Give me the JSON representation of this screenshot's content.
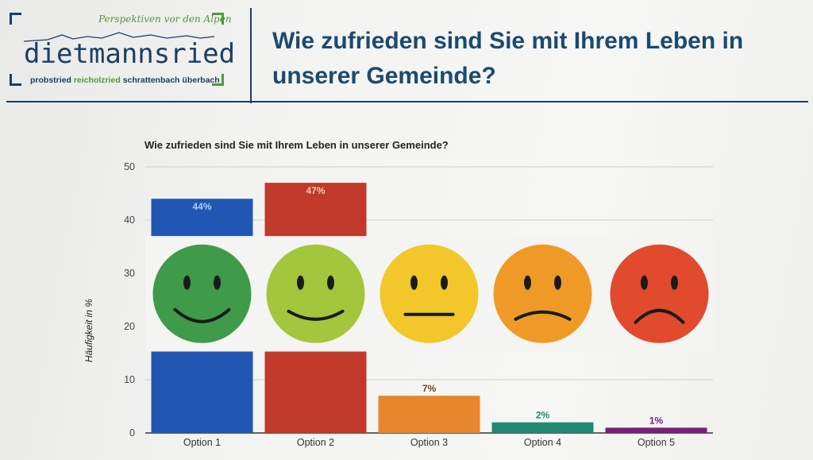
{
  "logo": {
    "tagline": "Perspektiven vor den Alpen",
    "name": "dietmannsried",
    "villages": [
      "probstried",
      "reicholzried",
      "schrattenbach",
      "überbach"
    ]
  },
  "header": {
    "title": "Wie zufrieden sind Sie mit Ihrem Leben in unserer Gemeinde?"
  },
  "chart_data": {
    "type": "bar",
    "title": "Wie zufrieden sind Sie mit Ihrem Leben in unserer Gemeinde?",
    "xlabel": "",
    "ylabel": "Häufigkeit in %",
    "categories": [
      "Option 1",
      "Option 2",
      "Option 3",
      "Option 4",
      "Option 5"
    ],
    "values": [
      44,
      47,
      7,
      2,
      1
    ],
    "labels": [
      "44%",
      "47%",
      "7%",
      "2%",
      "1%"
    ],
    "ylim": [
      0,
      50
    ],
    "yticks": [
      0,
      10,
      20,
      30,
      40,
      50
    ],
    "grid": true,
    "bar_colors": [
      "#2157b3",
      "#c1392b",
      "#e8862e",
      "#1f8a70",
      "#7b1f77"
    ],
    "label_colors": [
      "#a8d0f5",
      "#f6c9b8",
      "#6b4a2c",
      "#1f8a70",
      "#7b1f77"
    ],
    "smiley_colors": [
      "#3f9b4a",
      "#a3c63c",
      "#f2c72a",
      "#ef9a27",
      "#e14a2c"
    ],
    "smiley_faces": [
      "very-happy",
      "happy",
      "neutral",
      "sad",
      "very-sad"
    ]
  }
}
